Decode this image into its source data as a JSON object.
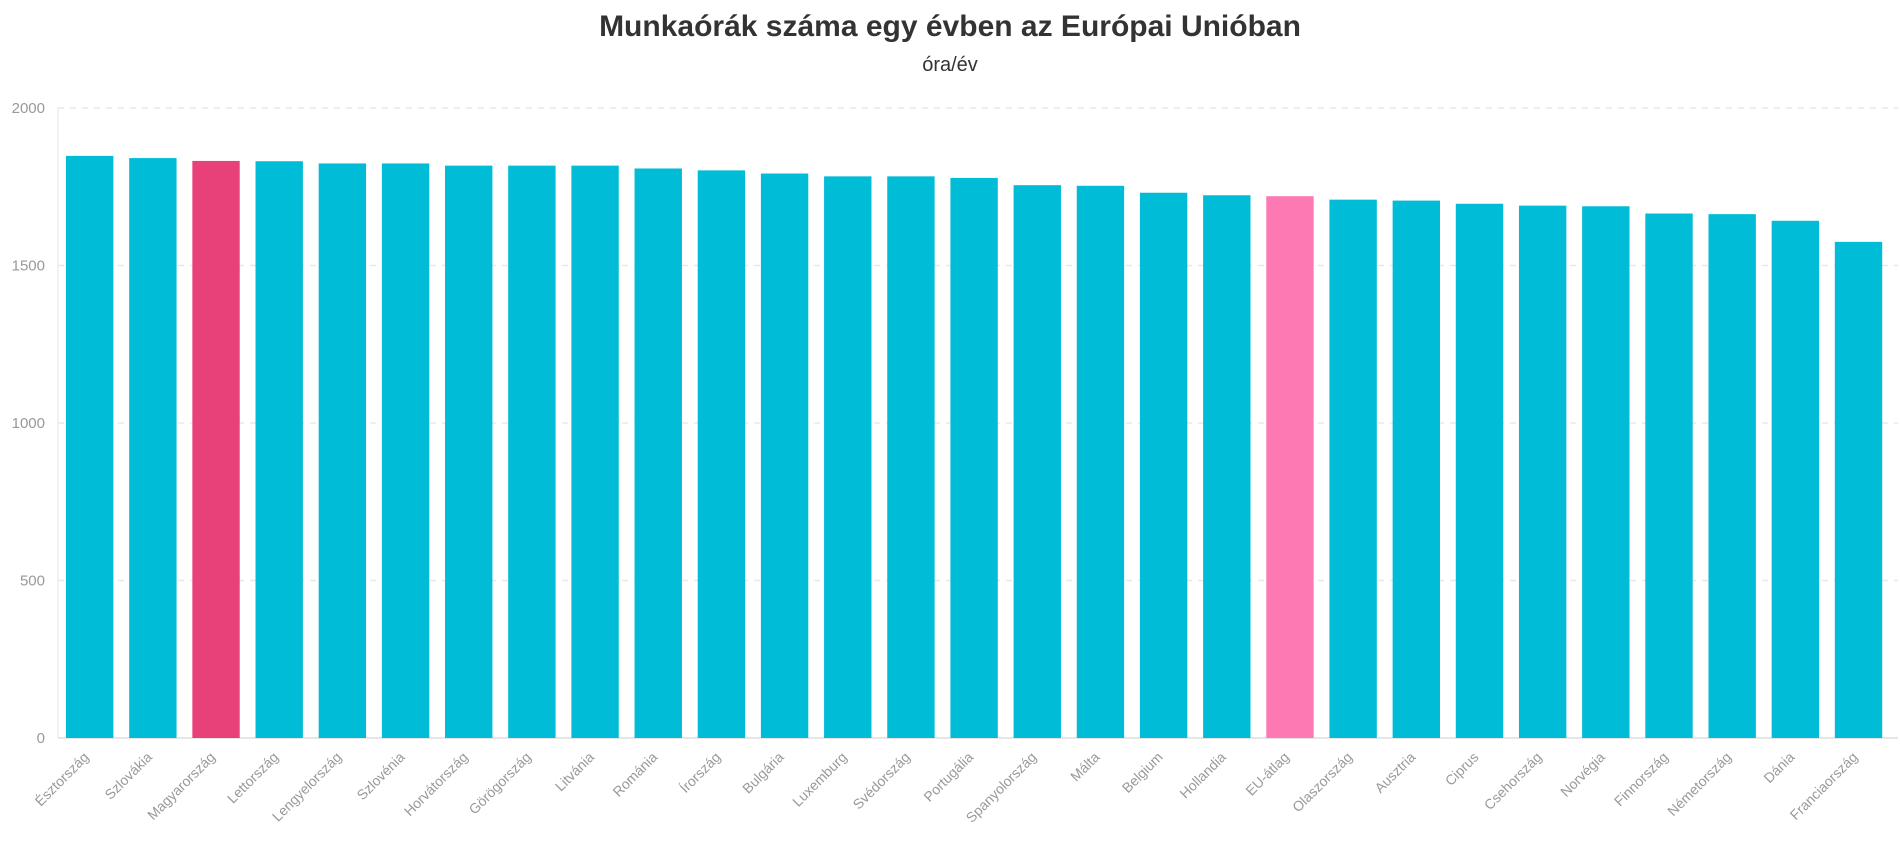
{
  "chart_data": {
    "type": "bar",
    "title": "Munkaórák száma egy évben az Európai Unióban",
    "subtitle": "óra/év",
    "xlabel": "",
    "ylabel": "",
    "ylim": [
      0,
      2000
    ],
    "yticks": [
      0,
      500,
      1000,
      1500,
      2000
    ],
    "grid": true,
    "categories": [
      "Észtország",
      "Szlovákia",
      "Magyarország",
      "Lettország",
      "Lengyelország",
      "Szlovénia",
      "Horvátország",
      "Görögország",
      "Litvánia",
      "Románia",
      "Írország",
      "Bulgária",
      "Luxemburg",
      "Svédország",
      "Portugália",
      "Spanyolország",
      "Málta",
      "Belgium",
      "Hollandia",
      "EU-átlag",
      "Olaszország",
      "Ausztria",
      "Ciprus",
      "Csehország",
      "Norvégia",
      "Finnország",
      "Németország",
      "Dánia",
      "Franciaország"
    ],
    "values": [
      1848,
      1841,
      1832,
      1831,
      1824,
      1824,
      1817,
      1817,
      1817,
      1808,
      1802,
      1792,
      1783,
      1783,
      1778,
      1755,
      1753,
      1731,
      1723,
      1720,
      1709,
      1706,
      1696,
      1690,
      1688,
      1665,
      1663,
      1642,
      1575
    ],
    "colors": {
      "default": "#00BCD6",
      "Magyarország": "#E8417A",
      "EU-átlag": "#FC79B3"
    }
  }
}
